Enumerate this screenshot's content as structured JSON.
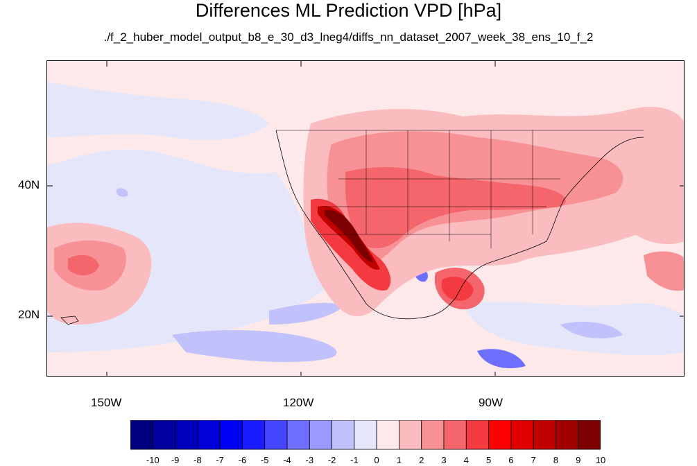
{
  "title": "Differences ML Prediction VPD [hPa]",
  "subtitle": "./f_2_huber_model_output_b8_e_30_d3_lneg4/diffs_nn_dataset_2007_week_38_ens_10_f_2",
  "lat_labels": [
    "40N",
    "20N"
  ],
  "lon_labels": [
    "150W",
    "120W",
    "90W"
  ],
  "colorbar": {
    "labels": [
      "-10",
      "-9",
      "-8",
      "-7",
      "-6",
      "-5",
      "-4",
      "-3",
      "-2",
      "-1",
      "0",
      "1",
      "2",
      "3",
      "4",
      "5",
      "6",
      "7",
      "8",
      "9",
      "10"
    ],
    "colors": [
      "#000080",
      "#00009e",
      "#0000bc",
      "#0000d9",
      "#0000f5",
      "#1b1bff",
      "#4646ff",
      "#6f6fff",
      "#9999ff",
      "#c1c1fb",
      "#e6e6fb",
      "#fde9ea",
      "#fbbcbf",
      "#f89195",
      "#f5666c",
      "#f43a41",
      "#ff0000",
      "#e00000",
      "#c10000",
      "#a20000",
      "#7d0000"
    ]
  },
  "colors": {
    "background_positive_small": "#fde9ea",
    "background_negative_small": "#e6e6fb",
    "outline": "#000000"
  }
}
